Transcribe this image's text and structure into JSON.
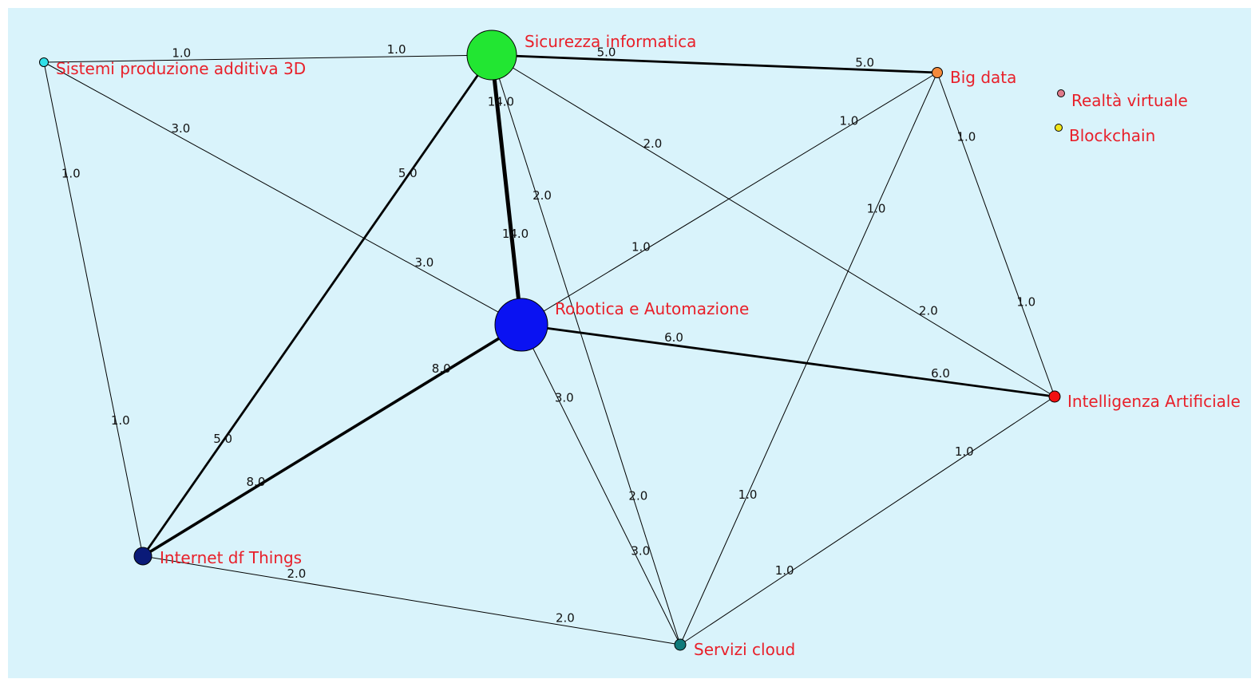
{
  "nodes": [
    {
      "id": "sic",
      "label": "Sicurezza informatica",
      "color": "#22e632",
      "weight": 14
    },
    {
      "id": "rob",
      "label": "Robotica e Automazione",
      "color": "#0a12f2",
      "weight": 16
    },
    {
      "id": "big",
      "label": "Big data",
      "color": "#f5893a",
      "weight": 2
    },
    {
      "id": "ia",
      "label": "Intelligenza Artificiale",
      "color": "#f21010",
      "weight": 3
    },
    {
      "id": "sis",
      "label": "Sistemi produzione additiva 3D",
      "color": "#30e0e8",
      "weight": 2
    },
    {
      "id": "iot",
      "label": "Internet df Things",
      "color": "#0a1a78",
      "weight": 5
    },
    {
      "id": "cloud",
      "label": "Servizi cloud",
      "color": "#107a7a",
      "weight": 3
    },
    {
      "id": "rv",
      "label": "Realtà  virtuale",
      "color": "#e07a8a",
      "weight": 1
    },
    {
      "id": "bc",
      "label": "Blockchain",
      "color": "#f2e61a",
      "weight": 1
    }
  ],
  "edges": [
    {
      "source": "sic",
      "target": "big",
      "labels": [
        "5.0",
        "5.0"
      ],
      "weight": 5
    },
    {
      "source": "sic",
      "target": "rob",
      "labels": [
        "14.0",
        "14.0"
      ],
      "weight": 14
    },
    {
      "source": "sic",
      "target": "sis",
      "labels": [
        "1.0",
        "1.0"
      ],
      "weight": 1
    },
    {
      "source": "sic",
      "target": "iot",
      "labels": [
        "5.0",
        "5.0"
      ],
      "weight": 5
    },
    {
      "source": "sic",
      "target": "ia",
      "labels": [
        "2.0",
        "2.0"
      ],
      "weight": 2
    },
    {
      "source": "sic",
      "target": "cloud",
      "labels": [
        "2.0",
        "2.0"
      ],
      "weight": 2
    },
    {
      "source": "rob",
      "target": "ia",
      "labels": [
        "6.0",
        "6.0"
      ],
      "weight": 6
    },
    {
      "source": "rob",
      "target": "iot",
      "labels": [
        "8.0",
        "8.0"
      ],
      "weight": 8
    },
    {
      "source": "rob",
      "target": "sis",
      "labels": [
        "3.0",
        "3.0"
      ],
      "weight": 3
    },
    {
      "source": "rob",
      "target": "big",
      "labels": [
        "1.0",
        "1.0"
      ],
      "weight": 1
    },
    {
      "source": "rob",
      "target": "cloud",
      "labels": [
        "3.0",
        "3.0"
      ],
      "weight": 3
    },
    {
      "source": "big",
      "target": "ia",
      "labels": [
        "1.0",
        "1.0"
      ],
      "weight": 1
    },
    {
      "source": "big",
      "target": "cloud",
      "labels": [
        "1.0",
        "1.0"
      ],
      "weight": 1
    },
    {
      "source": "sis",
      "target": "iot",
      "labels": [
        "1.0",
        "1.0"
      ],
      "weight": 1
    },
    {
      "source": "iot",
      "target": "cloud",
      "labels": [
        "2.0",
        "2.0"
      ],
      "weight": 2
    },
    {
      "source": "ia",
      "target": "cloud",
      "labels": [
        "1.0",
        "1.0"
      ],
      "weight": 1
    }
  ]
}
